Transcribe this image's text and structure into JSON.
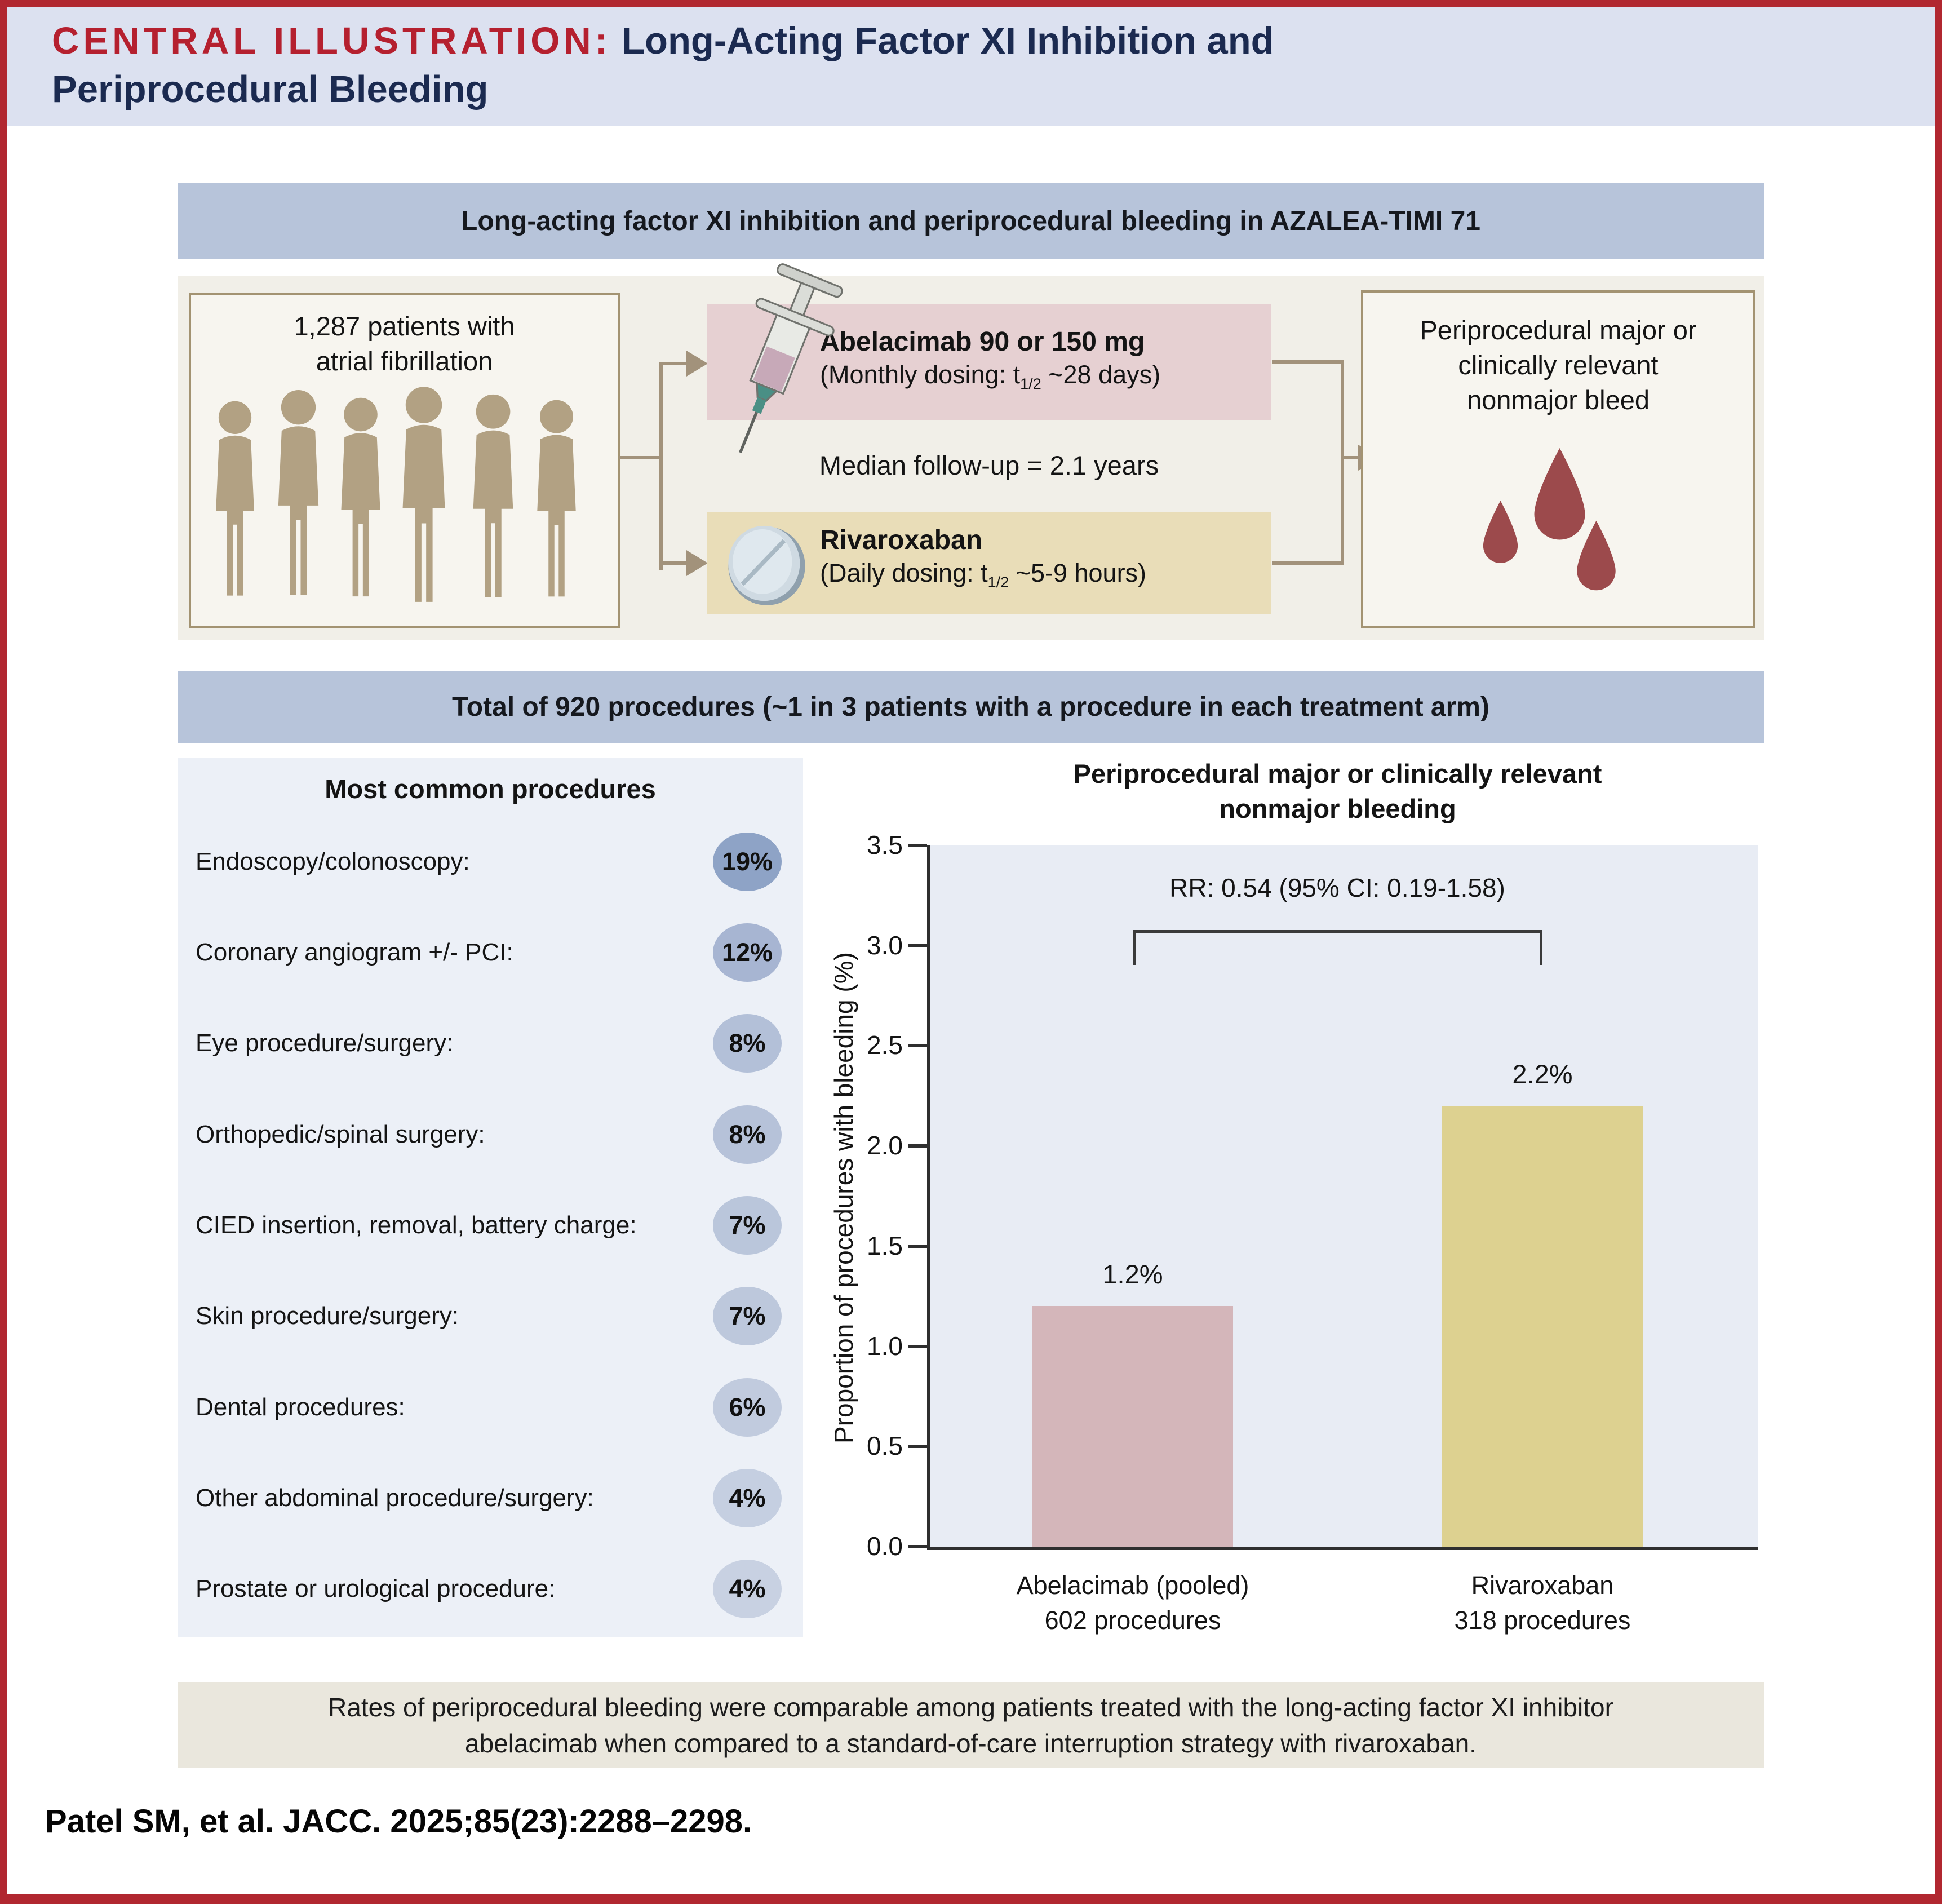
{
  "header": {
    "label": "CENTRAL ILLUSTRATION:",
    "title_rest": "Long-Acting Factor XI Inhibition and",
    "title_line2": "Periprocedural Bleeding"
  },
  "banner_top": "Long-acting factor XI inhibition and periprocedural bleeding in AZALEA-TIMI 71",
  "banner_total": "Total of 920 procedures (~1 in 3 patients with a procedure in each treatment arm)",
  "flow": {
    "patients": "1,287 patients with atrial fibrillation",
    "abelacimab": {
      "title": "Abelacimab 90 or 150 mg",
      "dose_pre": "(Monthly dosing: t",
      "dose_sub": "1/2",
      "dose_post": " ~28 days)"
    },
    "median": "Median follow-up = 2.1 years",
    "rivaroxaban": {
      "title": "Rivaroxaban",
      "dose_pre": "(Daily dosing: t",
      "dose_sub": "1/2",
      "dose_post": " ~5-9 hours)"
    },
    "outcome": "Periprocedural major or clinically relevant nonmajor bleed"
  },
  "procedures": {
    "title": "Most common procedures",
    "items": [
      {
        "label": "Endoscopy/colonoscopy:",
        "value": "19%",
        "color": "#8ea3c6"
      },
      {
        "label": "Coronary angiogram +/- PCI:",
        "value": "12%",
        "color": "#a7b5d2"
      },
      {
        "label": "Eye procedure/surgery:",
        "value": "8%",
        "color": "#b3c0d8"
      },
      {
        "label": "Orthopedic/spinal surgery:",
        "value": "8%",
        "color": "#b6c2d9"
      },
      {
        "label": "CIED insertion, removal, battery charge:",
        "value": "7%",
        "color": "#bac6db"
      },
      {
        "label": "Skin procedure/surgery:",
        "value": "7%",
        "color": "#bdc8dc"
      },
      {
        "label": "Dental procedures:",
        "value": "6%",
        "color": "#c1cbde"
      },
      {
        "label": "Other abdominal procedure/surgery:",
        "value": "4%",
        "color": "#c5cfe1"
      },
      {
        "label": "Prostate or urological procedure:",
        "value": "4%",
        "color": "#c8d1e2"
      }
    ]
  },
  "chart_data": {
    "type": "bar",
    "title": "Periprocedural major or clinically relevant nonmajor bleeding",
    "ylabel": "Proportion of procedures with bleeding (%)",
    "ylim": [
      0,
      3.5
    ],
    "yticks": [
      "0.0",
      "0.5",
      "1.0",
      "1.5",
      "2.0",
      "2.5",
      "3.0",
      "3.5"
    ],
    "grid": false,
    "categories": [
      "Abelacimab (pooled)",
      "Rivaroxaban"
    ],
    "category_sublabels": [
      "602 procedures",
      "318 procedures"
    ],
    "values": [
      1.2,
      2.2
    ],
    "value_labels": [
      "1.2%",
      "2.2%"
    ],
    "bar_colors": [
      "#d4b6ba",
      "#ddd190"
    ],
    "annotation": "RR: 0.54 (95% CI: 0.19-1.58)"
  },
  "note": "Rates of periprocedural bleeding were comparable among patients treated with the long-acting factor XI inhibitor abelacimab when compared to a standard-of-care interruption strategy with rivaroxaban.",
  "citation": "Patel SM, et al. JACC. 2025;85(23):2288–2298."
}
